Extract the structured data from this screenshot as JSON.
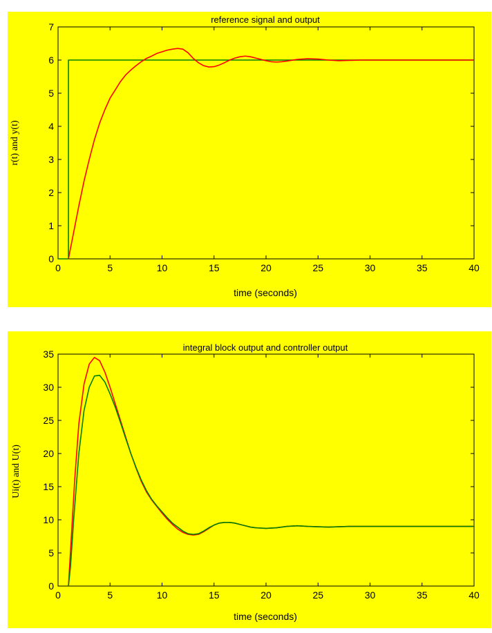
{
  "chart_data": [
    {
      "type": "line",
      "title": "reference signal and output",
      "xlabel": "time (seconds)",
      "ylabel": "r(t) and y(t)",
      "xlim": [
        0,
        40
      ],
      "ylim": [
        0,
        7
      ],
      "xticks": [
        "0",
        "5",
        "10",
        "15",
        "20",
        "25",
        "30",
        "35",
        "40"
      ],
      "yticks": [
        "0",
        "1",
        "2",
        "3",
        "4",
        "5",
        "6",
        "7"
      ],
      "grid": false,
      "background": "#ffff00",
      "series": [
        {
          "color": "#008000",
          "x": [
            0,
            1,
            1,
            40
          ],
          "y": [
            0,
            0,
            6,
            6
          ]
        },
        {
          "color": "#ff0000",
          "x": [
            1,
            1.5,
            2,
            2.5,
            3,
            3.5,
            4,
            4.5,
            5,
            5.5,
            6,
            6.5,
            7,
            7.5,
            8,
            8.5,
            9,
            9.5,
            10,
            10.5,
            11,
            11.5,
            12,
            12.5,
            13,
            13.5,
            14,
            14.5,
            15,
            15.5,
            16,
            16.5,
            17,
            17.5,
            18,
            18.5,
            19,
            19.5,
            20,
            20.5,
            21,
            21.5,
            22,
            23,
            24,
            25,
            26,
            27,
            28,
            29,
            30,
            32,
            35,
            40
          ],
          "y": [
            0,
            0.8,
            1.6,
            2.35,
            3.0,
            3.6,
            4.1,
            4.5,
            4.85,
            5.1,
            5.35,
            5.55,
            5.7,
            5.83,
            5.95,
            6.05,
            6.12,
            6.2,
            6.25,
            6.3,
            6.33,
            6.35,
            6.33,
            6.22,
            6.05,
            5.92,
            5.83,
            5.79,
            5.8,
            5.85,
            5.92,
            6.0,
            6.06,
            6.1,
            6.12,
            6.1,
            6.06,
            6.02,
            5.98,
            5.95,
            5.94,
            5.95,
            5.97,
            6.02,
            6.04,
            6.03,
            6.0,
            5.98,
            5.99,
            6.0,
            6.0,
            6.0,
            6.0,
            6.0
          ]
        }
      ]
    },
    {
      "type": "line",
      "title": "integral block output and controller output",
      "xlabel": "time (seconds)",
      "ylabel": "Ui(t) and U(t)",
      "xlim": [
        0,
        40
      ],
      "ylim": [
        0,
        35
      ],
      "xticks": [
        "0",
        "5",
        "10",
        "15",
        "20",
        "25",
        "30",
        "35",
        "40"
      ],
      "yticks": [
        "0",
        "5",
        "10",
        "15",
        "20",
        "25",
        "30",
        "35"
      ],
      "grid": false,
      "background": "#ffff00",
      "series": [
        {
          "color": "#ff0000",
          "x": [
            1,
            1.3,
            1.6,
            2,
            2.5,
            3,
            3.5,
            4,
            4.5,
            5,
            5.5,
            6,
            6.5,
            7,
            7.5,
            8,
            8.5,
            9,
            9.5,
            10,
            10.5,
            11,
            11.5,
            12,
            12.5,
            13,
            13.5,
            14,
            14.5,
            15,
            15.5,
            16,
            16.5,
            17,
            17.5,
            18,
            18.5,
            19,
            19.5,
            20,
            21,
            22,
            23,
            24,
            25,
            26,
            27,
            28,
            30,
            35,
            40
          ],
          "y": [
            0,
            8,
            16,
            24.5,
            30.5,
            33.5,
            34.5,
            34.0,
            32.3,
            30.0,
            27.5,
            25.0,
            22.5,
            20.0,
            17.8,
            15.8,
            14.2,
            13.0,
            12.0,
            11.0,
            10.1,
            9.3,
            8.6,
            8.1,
            7.8,
            7.7,
            7.8,
            8.2,
            8.7,
            9.2,
            9.5,
            9.6,
            9.6,
            9.5,
            9.3,
            9.1,
            8.9,
            8.8,
            8.75,
            8.7,
            8.8,
            9.0,
            9.1,
            9.0,
            8.95,
            8.9,
            8.95,
            9.0,
            9.0,
            9.0,
            9.0
          ]
        },
        {
          "color": "#008000",
          "x": [
            1,
            1.2,
            1.5,
            2,
            2.5,
            3,
            3.5,
            4,
            4.5,
            5,
            5.5,
            6,
            6.5,
            7,
            7.5,
            8,
            8.5,
            9,
            9.5,
            10,
            10.5,
            11,
            11.5,
            12,
            12.5,
            13,
            13.5,
            14,
            14.5,
            15,
            15.5,
            16,
            16.5,
            17,
            17.5,
            18,
            18.5,
            19,
            19.5,
            20,
            21,
            22,
            23,
            24,
            25,
            26,
            27,
            28,
            30,
            35,
            40
          ],
          "y": [
            0,
            3,
            10,
            20.0,
            26.5,
            30.0,
            31.7,
            31.8,
            30.8,
            29.0,
            27.0,
            24.7,
            22.3,
            20.0,
            17.9,
            16.0,
            14.4,
            13.1,
            12.1,
            11.2,
            10.3,
            9.5,
            8.9,
            8.3,
            7.9,
            7.8,
            7.9,
            8.3,
            8.8,
            9.2,
            9.5,
            9.6,
            9.6,
            9.5,
            9.3,
            9.1,
            8.9,
            8.8,
            8.75,
            8.7,
            8.8,
            9.0,
            9.1,
            9.0,
            8.95,
            8.9,
            8.95,
            9.0,
            9.0,
            9.0,
            9.0
          ]
        }
      ]
    }
  ]
}
